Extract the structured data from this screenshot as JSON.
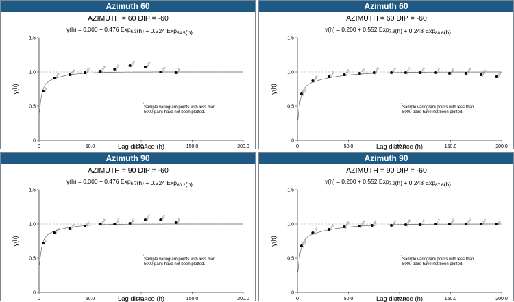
{
  "panels": [
    {
      "header": "Azimuth 60",
      "subtitle": "AZIMUTH = 60   DIP = -60",
      "formula": {
        "c0": "0.300",
        "c1": "0.476",
        "r1": "6.3",
        "c2": "0.224",
        "r2": "54.5"
      },
      "note": [
        "Sample variogram points with less than",
        "5000 pairs have not been plotted."
      ],
      "chart_data": {
        "type": "scatter",
        "xlabel": "Lag distance (h)",
        "ylabel": "γ(h)",
        "xlim": [
          0,
          200
        ],
        "ylim": [
          0,
          1.5
        ],
        "xticks": [
          "0",
          "50.0",
          "100.0",
          "150.0",
          "200.0"
        ],
        "yticks": [
          "0",
          "0.5",
          "1.0",
          "1.5"
        ],
        "sill": 1.0,
        "points": [
          {
            "x": 4,
            "y": 0.72,
            "label": "5296"
          },
          {
            "x": 15,
            "y": 0.91,
            "label": "11996"
          },
          {
            "x": 30,
            "y": 0.96,
            "label": "14453"
          },
          {
            "x": 45,
            "y": 0.99,
            "label": "15425"
          },
          {
            "x": 60,
            "y": 1.01,
            "label": "16348"
          },
          {
            "x": 74,
            "y": 1.04,
            "label": "17107"
          },
          {
            "x": 89,
            "y": 1.09,
            "label": "15921"
          },
          {
            "x": 104,
            "y": 1.07,
            "label": "14184"
          },
          {
            "x": 119,
            "y": 1.0,
            "label": "12152"
          },
          {
            "x": 134,
            "y": 0.99,
            "label": "9748"
          }
        ]
      }
    },
    {
      "header": "Azimuth 60",
      "subtitle": "AZIMUTH = 60   DIP = -60",
      "formula": {
        "c0": "0.200",
        "c1": "0.552",
        "r1": "7.8",
        "c2": "0.248",
        "r2": "88.6"
      },
      "note": [
        "Sample variogram points with less than",
        "5000 pairs have not been plotted."
      ],
      "chart_data": {
        "type": "scatter",
        "xlabel": "Lag distance (h)",
        "ylabel": "γ(h)",
        "xlim": [
          0,
          200
        ],
        "ylim": [
          0,
          1.5
        ],
        "xticks": [
          "0",
          "50.0",
          "100.0",
          "150.0",
          "200.0"
        ],
        "yticks": [
          "0",
          "0.5",
          "1.0",
          "1.5"
        ],
        "sill": 1.0,
        "points": [
          {
            "x": 4,
            "y": 0.68,
            "label": "28013"
          },
          {
            "x": 15,
            "y": 0.87,
            "label": "34985"
          },
          {
            "x": 31,
            "y": 0.93,
            "label": "40542"
          },
          {
            "x": 46,
            "y": 0.96,
            "label": "41722"
          },
          {
            "x": 61,
            "y": 0.98,
            "label": "41702"
          },
          {
            "x": 75,
            "y": 0.99,
            "label": "38492"
          },
          {
            "x": 92,
            "y": 0.99,
            "label": "37498"
          },
          {
            "x": 106,
            "y": 0.99,
            "label": "36477"
          },
          {
            "x": 120,
            "y": 0.99,
            "label": "35793"
          },
          {
            "x": 135,
            "y": 0.99,
            "label": "34744"
          },
          {
            "x": 149,
            "y": 0.98,
            "label": "33689"
          },
          {
            "x": 165,
            "y": 0.98,
            "label": "31365"
          },
          {
            "x": 180,
            "y": 0.96,
            "label": "26022"
          },
          {
            "x": 195,
            "y": 0.93,
            "label": "18454"
          }
        ]
      }
    },
    {
      "header": "Azimuth 90",
      "subtitle": "AZIMUTH = 90   DIP = -60",
      "formula": {
        "c0": "0.300",
        "c1": "0.476",
        "r1": "6.7",
        "c2": "0.224",
        "r2": "60.2"
      },
      "note": [
        "Sample variogram points with less than",
        "5000 pairs have not been plotted."
      ],
      "chart_data": {
        "type": "scatter",
        "xlabel": "Lag distance (h)",
        "ylabel": "γ(h)",
        "xlim": [
          0,
          200
        ],
        "ylim": [
          0,
          1.5
        ],
        "xticks": [
          "0",
          "50.0",
          "100.0",
          "150.0",
          "200.0"
        ],
        "yticks": [
          "0",
          "0.5",
          "1.0",
          "1.5"
        ],
        "sill": 1.0,
        "points": [
          {
            "x": 4,
            "y": 0.72,
            "label": "6791"
          },
          {
            "x": 15,
            "y": 0.87,
            "label": "10721"
          },
          {
            "x": 30,
            "y": 0.93,
            "label": "11440"
          },
          {
            "x": 45,
            "y": 0.97,
            "label": "17917"
          },
          {
            "x": 60,
            "y": 1.0,
            "label": "15984"
          },
          {
            "x": 74,
            "y": 1.0,
            "label": "17807"
          },
          {
            "x": 89,
            "y": 1.01,
            "label": "17457"
          },
          {
            "x": 104,
            "y": 1.06,
            "label": "15697"
          },
          {
            "x": 119,
            "y": 1.06,
            "label": "10807"
          },
          {
            "x": 134,
            "y": 1.02,
            "label": "8668"
          }
        ]
      }
    },
    {
      "header": "Azimuth 90",
      "subtitle": "AZIMUTH = 90   DIP = -60",
      "formula": {
        "c0": "0.200",
        "c1": "0.552",
        "r1": "7.9",
        "c2": "0.248",
        "r2": "87.6"
      },
      "note": [
        "Sample variogram points with less than",
        "5000 pairs have not been plotted."
      ],
      "chart_data": {
        "type": "scatter",
        "xlabel": "Lag distance (h)",
        "ylabel": "γ(h)",
        "xlim": [
          0,
          200
        ],
        "ylim": [
          0,
          1.5
        ],
        "xticks": [
          "0",
          "50.0",
          "100.0",
          "150.0",
          "200.0"
        ],
        "yticks": [
          "0",
          "0.5",
          "1.0",
          "1.5"
        ],
        "sill": 1.0,
        "points": [
          {
            "x": 4,
            "y": 0.68,
            "label": "10838"
          },
          {
            "x": 15,
            "y": 0.87,
            "label": "15717"
          },
          {
            "x": 31,
            "y": 0.92,
            "label": "20714"
          },
          {
            "x": 46,
            "y": 0.96,
            "label": "26439"
          },
          {
            "x": 61,
            "y": 0.97,
            "label": "31784"
          },
          {
            "x": 73,
            "y": 0.98,
            "label": "31984"
          },
          {
            "x": 92,
            "y": 0.98,
            "label": "30447"
          },
          {
            "x": 106,
            "y": 0.99,
            "label": "27746"
          },
          {
            "x": 120,
            "y": 0.99,
            "label": "25172"
          },
          {
            "x": 135,
            "y": 1.0,
            "label": "19717"
          },
          {
            "x": 149,
            "y": 1.0,
            "label": "15630"
          },
          {
            "x": 165,
            "y": 1.0,
            "label": "12330"
          },
          {
            "x": 180,
            "y": 1.0,
            "label": "10767"
          },
          {
            "x": 195,
            "y": 1.0,
            "label": "9891"
          }
        ]
      }
    }
  ]
}
